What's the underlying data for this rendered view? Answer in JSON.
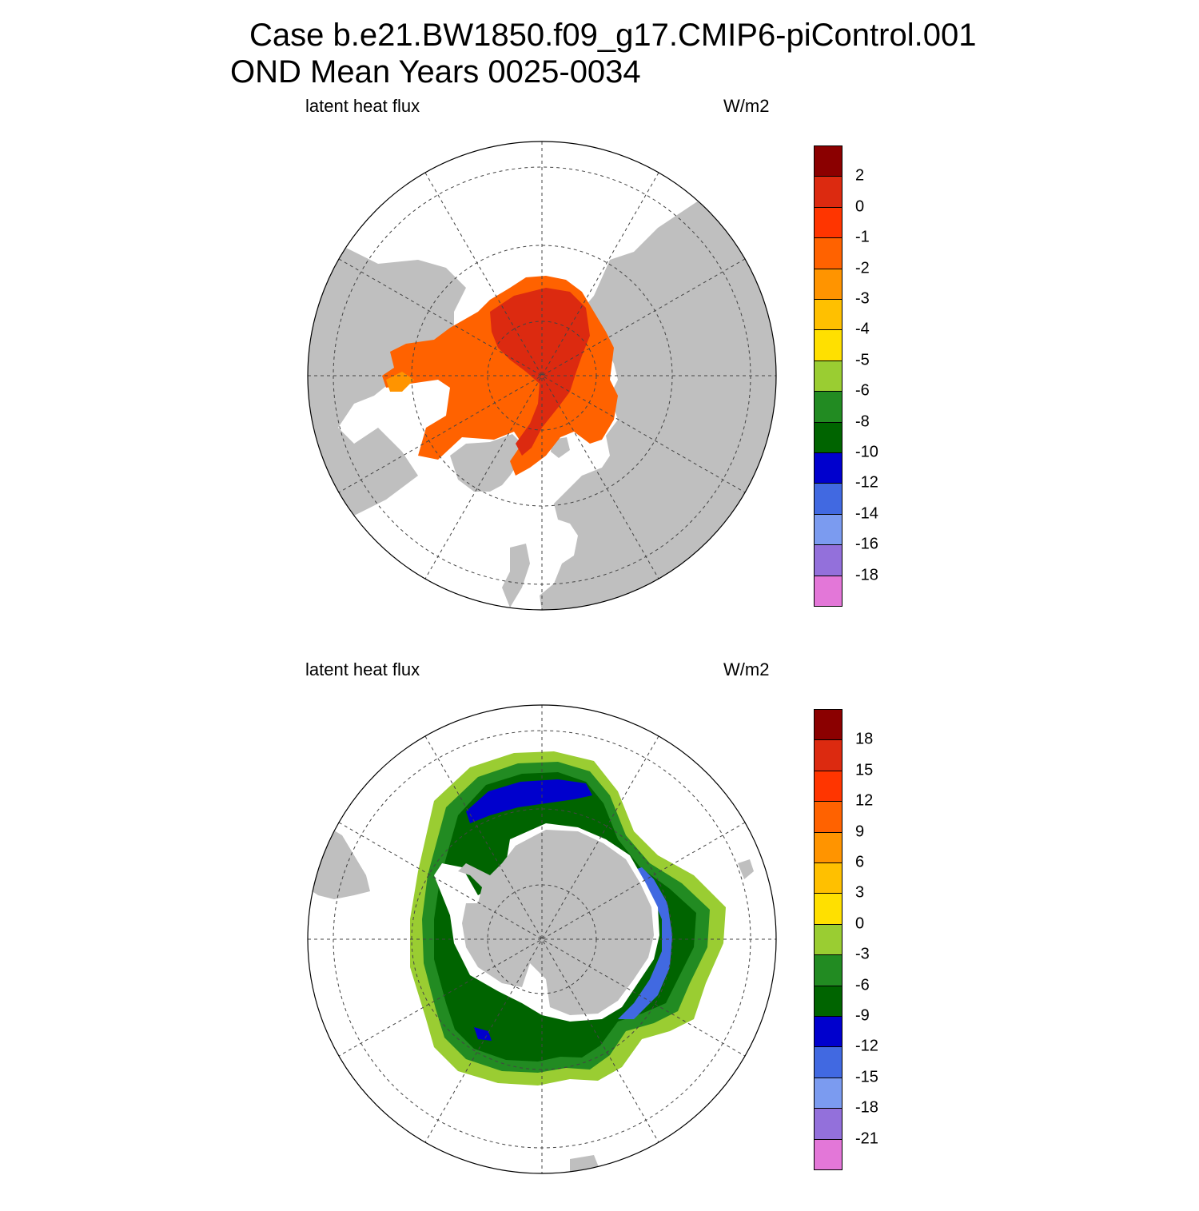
{
  "title": {
    "line1": "Case b.e21.BW1850.f09_g17.CMIP6-piControl.001",
    "line2": "OND Mean   Years 0025-0034"
  },
  "panels": [
    {
      "hemisphere": "north",
      "left_label": "latent heat flux",
      "right_label": "W/m2",
      "colorbar": {
        "colors": [
          "#e377d8",
          "#9370db",
          "#7b9bf0",
          "#4169e1",
          "#0000cd",
          "#006400",
          "#228b22",
          "#9acd32",
          "#ffe000",
          "#ffc000",
          "#ff9400",
          "#ff6200",
          "#ff3500",
          "#dc2a10",
          "#8b0000"
        ],
        "labels": [
          "-18",
          "-16",
          "-14",
          "-12",
          "-10",
          "-8",
          "-6",
          "-5",
          "-4",
          "-3",
          "-2",
          "-1",
          "0",
          "2"
        ]
      }
    },
    {
      "hemisphere": "south",
      "left_label": "latent heat flux",
      "right_label": "W/m2",
      "colorbar": {
        "colors": [
          "#e377d8",
          "#9370db",
          "#7b9bf0",
          "#4169e1",
          "#0000cd",
          "#006400",
          "#228b22",
          "#9acd32",
          "#ffe000",
          "#ffc000",
          "#ff9400",
          "#ff6200",
          "#ff3500",
          "#dc2a10",
          "#8b0000"
        ],
        "labels": [
          "-21",
          "-18",
          "-15",
          "-12",
          "-9",
          "-6",
          "-3",
          "0",
          "3",
          "6",
          "9",
          "12",
          "15",
          "18"
        ]
      }
    }
  ],
  "colors": {
    "land": "#bfbfbf",
    "ocean_nodata": "#ffffff"
  }
}
